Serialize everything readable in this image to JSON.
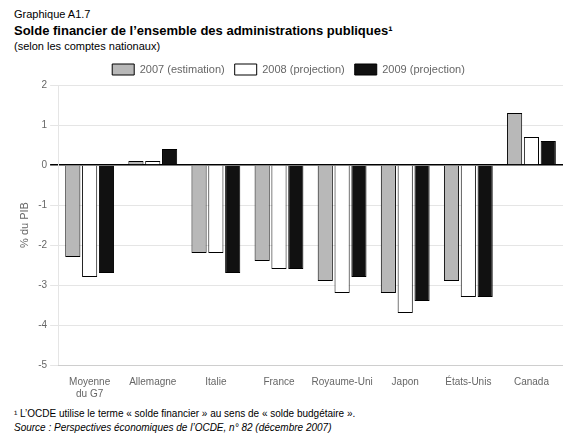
{
  "chart_data": {
    "type": "bar",
    "title": "Solde financier de l’ensemble des administrations publiques¹",
    "subtitle": "(selon les comptes nationaux)",
    "annotations": [
      "Graphique A1.7",
      "¹ L’OCDE utilise le terme « solde financier » au sens de « solde budgétaire ».",
      "Source : Perspectives économiques de l’OCDE, n° 82 (décembre 2007)"
    ],
    "ylabel": "% du PIB",
    "categories": [
      "Moyenne\ndu G7",
      "Allemagne",
      "Italie",
      "France",
      "Royaume-Uni",
      "Japon",
      "États-Unis",
      "Canada"
    ],
    "series": [
      {
        "name": "2007 (estimation)",
        "color": "#b8b8b8",
        "values": [
          -2.3,
          0.1,
          -2.2,
          -2.4,
          -2.9,
          -3.2,
          -2.9,
          1.3
        ]
      },
      {
        "name": "2008 (projection)",
        "color": "#ffffff",
        "values": [
          -2.8,
          0.1,
          -2.2,
          -2.6,
          -3.2,
          -3.7,
          -3.3,
          0.7
        ]
      },
      {
        "name": "2009 (projection)",
        "color": "#111111",
        "values": [
          -2.7,
          0.4,
          -2.7,
          -2.6,
          -2.8,
          -3.4,
          -3.3,
          0.6
        ]
      }
    ],
    "ylim": [
      -5,
      2
    ],
    "yticks": [
      -5,
      -4,
      -3,
      -2,
      -1,
      0,
      1,
      2
    ],
    "grid": true,
    "legend": "top"
  }
}
